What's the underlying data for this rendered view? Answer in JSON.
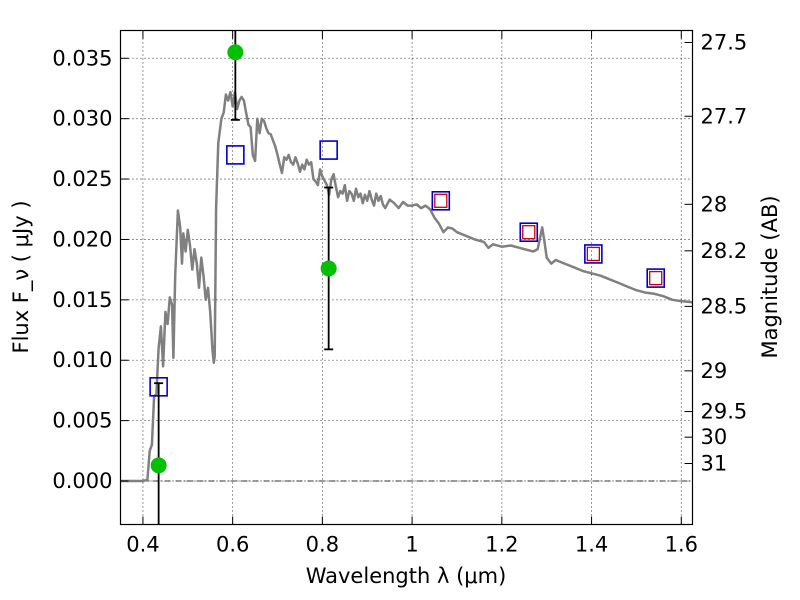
{
  "chart_data": {
    "type": "scatter",
    "xlabel": "Wavelength  λ (μm)",
    "ylabel": "Flux  F_ν  ( μJy )",
    "ylabel_right": "Magnitude (AB)",
    "xlim": [
      0.35,
      1.625
    ],
    "ylim": [
      -0.0036,
      0.0373
    ],
    "grid": true,
    "x_ticks": [
      0.4,
      0.6,
      0.8,
      1.0,
      1.2,
      1.4,
      1.6
    ],
    "x_tick_labels": [
      "0.4",
      "0.6",
      "0.8",
      "1",
      "1.2",
      "1.4",
      "1.6"
    ],
    "y_ticks": [
      0.0,
      0.005,
      0.01,
      0.015,
      0.02,
      0.025,
      0.03,
      0.035
    ],
    "y_tick_labels": [
      "0.000",
      "0.005",
      "0.010",
      "0.015",
      "0.020",
      "0.025",
      "0.030",
      "0.035"
    ],
    "mag_ticks": [
      {
        "label": "27.5",
        "flux": 0.03631
      },
      {
        "label": "27.7",
        "flux": 0.0302
      },
      {
        "label": "28",
        "flux": 0.02291
      },
      {
        "label": "28.2",
        "flux": 0.01906
      },
      {
        "label": "28.5",
        "flux": 0.01446
      },
      {
        "label": "29",
        "flux": 0.00912
      },
      {
        "label": "29.5",
        "flux": 0.00575
      },
      {
        "label": "30",
        "flux": 0.00363
      },
      {
        "label": "31",
        "flux": 0.00145
      }
    ],
    "colors": {
      "model": "#808080",
      "observed": "#00c000",
      "model_band": "#0000cc",
      "model_band_inner": "#cc0000",
      "errorbar": "#000000"
    },
    "series": [
      {
        "kind": "model_spectrum",
        "points": [
          [
            0.35,
            0.0
          ],
          [
            0.4,
            0.0
          ],
          [
            0.41,
            0.0001
          ],
          [
            0.415,
            0.0025
          ],
          [
            0.42,
            0.003
          ],
          [
            0.425,
            0.007
          ],
          [
            0.43,
            0.0072
          ],
          [
            0.435,
            0.011
          ],
          [
            0.44,
            0.0128
          ],
          [
            0.445,
            0.0095
          ],
          [
            0.45,
            0.014
          ],
          [
            0.455,
            0.013
          ],
          [
            0.46,
            0.0152
          ],
          [
            0.465,
            0.0146
          ],
          [
            0.468,
            0.0102
          ],
          [
            0.472,
            0.017
          ],
          [
            0.478,
            0.0224
          ],
          [
            0.483,
            0.021
          ],
          [
            0.487,
            0.018
          ],
          [
            0.49,
            0.0205
          ],
          [
            0.495,
            0.019
          ],
          [
            0.5,
            0.0208
          ],
          [
            0.505,
            0.0195
          ],
          [
            0.51,
            0.0175
          ],
          [
            0.515,
            0.0192
          ],
          [
            0.52,
            0.018
          ],
          [
            0.525,
            0.016
          ],
          [
            0.53,
            0.0185
          ],
          [
            0.535,
            0.017
          ],
          [
            0.54,
            0.015
          ],
          [
            0.545,
            0.016
          ],
          [
            0.55,
            0.014
          ],
          [
            0.555,
            0.0108
          ],
          [
            0.558,
            0.0098
          ],
          [
            0.56,
            0.0103
          ],
          [
            0.563,
            0.0226
          ],
          [
            0.568,
            0.028
          ],
          [
            0.575,
            0.03
          ],
          [
            0.58,
            0.0305
          ],
          [
            0.585,
            0.032
          ],
          [
            0.59,
            0.0315
          ],
          [
            0.595,
            0.0322
          ],
          [
            0.6,
            0.031
          ],
          [
            0.605,
            0.0322
          ],
          [
            0.61,
            0.0308
          ],
          [
            0.615,
            0.0315
          ],
          [
            0.62,
            0.0318
          ],
          [
            0.625,
            0.0315
          ],
          [
            0.63,
            0.0305
          ],
          [
            0.635,
            0.0295
          ],
          [
            0.64,
            0.0293
          ],
          [
            0.645,
            0.027
          ],
          [
            0.65,
            0.0265
          ],
          [
            0.655,
            0.03
          ],
          [
            0.66,
            0.0288
          ],
          [
            0.665,
            0.03
          ],
          [
            0.67,
            0.0298
          ],
          [
            0.675,
            0.0292
          ],
          [
            0.68,
            0.0288
          ],
          [
            0.685,
            0.0287
          ],
          [
            0.69,
            0.0282
          ],
          [
            0.695,
            0.0277
          ],
          [
            0.7,
            0.027
          ],
          [
            0.705,
            0.0262
          ],
          [
            0.71,
            0.0255
          ],
          [
            0.715,
            0.0268
          ],
          [
            0.72,
            0.0266
          ],
          [
            0.725,
            0.027
          ],
          [
            0.73,
            0.0264
          ],
          [
            0.735,
            0.0262
          ],
          [
            0.74,
            0.0268
          ],
          [
            0.745,
            0.0263
          ],
          [
            0.75,
            0.0256
          ],
          [
            0.755,
            0.0262
          ],
          [
            0.76,
            0.0258
          ],
          [
            0.765,
            0.0266
          ],
          [
            0.77,
            0.0262
          ],
          [
            0.775,
            0.0264
          ],
          [
            0.78,
            0.025
          ],
          [
            0.785,
            0.0248
          ],
          [
            0.79,
            0.0245
          ],
          [
            0.795,
            0.0258
          ],
          [
            0.8,
            0.0252
          ],
          [
            0.81,
            0.0245
          ],
          [
            0.815,
            0.0237
          ],
          [
            0.82,
            0.025
          ],
          [
            0.825,
            0.0254
          ],
          [
            0.83,
            0.0244
          ],
          [
            0.835,
            0.0235
          ],
          [
            0.84,
            0.024
          ],
          [
            0.845,
            0.0238
          ],
          [
            0.85,
            0.0245
          ],
          [
            0.855,
            0.0232
          ],
          [
            0.86,
            0.024
          ],
          [
            0.865,
            0.0238
          ],
          [
            0.87,
            0.0232
          ],
          [
            0.875,
            0.0242
          ],
          [
            0.88,
            0.0235
          ],
          [
            0.885,
            0.0238
          ],
          [
            0.89,
            0.023
          ],
          [
            0.895,
            0.0237
          ],
          [
            0.9,
            0.0232
          ],
          [
            0.905,
            0.024
          ],
          [
            0.91,
            0.0233
          ],
          [
            0.915,
            0.0228
          ],
          [
            0.92,
            0.0238
          ],
          [
            0.925,
            0.0232
          ],
          [
            0.93,
            0.0236
          ],
          [
            0.935,
            0.0229
          ],
          [
            0.94,
            0.0226
          ],
          [
            0.95,
            0.0233
          ],
          [
            0.96,
            0.023
          ],
          [
            0.97,
            0.0226
          ],
          [
            0.98,
            0.0231
          ],
          [
            0.99,
            0.0228
          ],
          [
            1.0,
            0.0228
          ],
          [
            1.01,
            0.0229
          ],
          [
            1.02,
            0.0226
          ],
          [
            1.03,
            0.0228
          ],
          [
            1.04,
            0.0225
          ],
          [
            1.05,
            0.0218
          ],
          [
            1.06,
            0.0213
          ],
          [
            1.07,
            0.0206
          ],
          [
            1.08,
            0.021
          ],
          [
            1.09,
            0.0209
          ],
          [
            1.1,
            0.0206
          ],
          [
            1.12,
            0.0203
          ],
          [
            1.14,
            0.02
          ],
          [
            1.16,
            0.0198
          ],
          [
            1.17,
            0.0193
          ],
          [
            1.18,
            0.0196
          ],
          [
            1.2,
            0.0194
          ],
          [
            1.22,
            0.0195
          ],
          [
            1.24,
            0.0193
          ],
          [
            1.26,
            0.0191
          ],
          [
            1.27,
            0.019
          ],
          [
            1.28,
            0.0192
          ],
          [
            1.29,
            0.021
          ],
          [
            1.295,
            0.0198
          ],
          [
            1.3,
            0.0185
          ],
          [
            1.31,
            0.018
          ],
          [
            1.32,
            0.0183
          ],
          [
            1.34,
            0.018
          ],
          [
            1.36,
            0.0177
          ],
          [
            1.38,
            0.0174
          ],
          [
            1.4,
            0.0172
          ],
          [
            1.42,
            0.017
          ],
          [
            1.44,
            0.0167
          ],
          [
            1.46,
            0.0164
          ],
          [
            1.48,
            0.0161
          ],
          [
            1.5,
            0.0158
          ],
          [
            1.52,
            0.0156
          ],
          [
            1.54,
            0.0155
          ],
          [
            1.56,
            0.0153
          ],
          [
            1.58,
            0.015
          ],
          [
            1.6,
            0.0149
          ],
          [
            1.625,
            0.0148
          ]
        ]
      },
      {
        "kind": "model_band_flux",
        "points": [
          {
            "x": 0.435,
            "y": 0.0078,
            "inner": false
          },
          {
            "x": 0.606,
            "y": 0.027,
            "inner": false
          },
          {
            "x": 0.814,
            "y": 0.0274,
            "inner": false
          },
          {
            "x": 1.064,
            "y": 0.0232,
            "inner": true
          },
          {
            "x": 1.26,
            "y": 0.0206,
            "inner": true
          },
          {
            "x": 1.404,
            "y": 0.0188,
            "inner": true
          },
          {
            "x": 1.543,
            "y": 0.0168,
            "inner": true
          }
        ]
      },
      {
        "kind": "observed_flux",
        "points": [
          {
            "x": 0.435,
            "y": 0.0013,
            "lo": -0.0036,
            "hi": 0.0081
          },
          {
            "x": 0.606,
            "y": 0.0355,
            "lo": 0.0299,
            "hi": 0.0373
          },
          {
            "x": 0.814,
            "y": 0.0176,
            "lo": 0.0109,
            "hi": 0.0243
          }
        ]
      }
    ]
  }
}
